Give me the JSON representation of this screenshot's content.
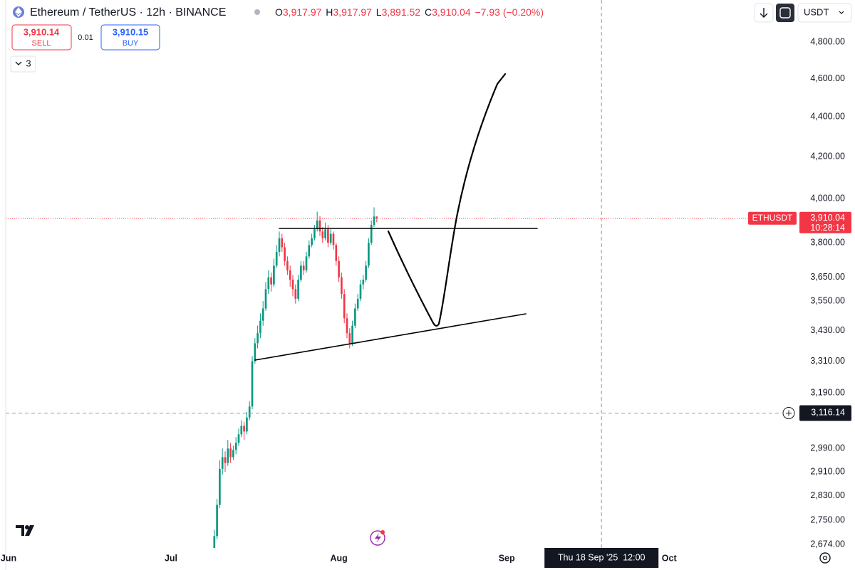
{
  "chart_data": {
    "type": "candlestick",
    "title": "Ethereum / TetherUS · 12h · BINANCE",
    "x": [
      76,
      77,
      78,
      79,
      80,
      81,
      82,
      83,
      84,
      85,
      86,
      87,
      88,
      89,
      90,
      91,
      92,
      93,
      94,
      95,
      96,
      97,
      98,
      99,
      100,
      101,
      102,
      103,
      104,
      105,
      106,
      107,
      108,
      109,
      110,
      111,
      112,
      113,
      114,
      115,
      116,
      117,
      118,
      119,
      120,
      121,
      122,
      123,
      124,
      125,
      126,
      127,
      128,
      129,
      130,
      131,
      132,
      133,
      134,
      135,
      136
    ],
    "open": [
      2640,
      2700,
      2800,
      2920,
      2960,
      2940,
      2990,
      2960,
      2985,
      3010,
      3040,
      3070,
      3050,
      3100,
      3140,
      3310,
      3380,
      3420,
      3470,
      3520,
      3600,
      3650,
      3620,
      3700,
      3760,
      3820,
      3780,
      3720,
      3680,
      3640,
      3600,
      3560,
      3640,
      3700,
      3680,
      3740,
      3790,
      3820,
      3860,
      3900,
      3850,
      3820,
      3860,
      3800,
      3840,
      3790,
      3720,
      3650,
      3580,
      3480,
      3420,
      3380,
      3450,
      3520,
      3560,
      3620,
      3640,
      3700,
      3800,
      3880,
      3917.97
    ],
    "high": [
      2720,
      2820,
      2950,
      2990,
      2980,
      3020,
      3010,
      3000,
      3030,
      3060,
      3090,
      3085,
      3120,
      3160,
      3330,
      3400,
      3450,
      3500,
      3550,
      3630,
      3680,
      3670,
      3730,
      3790,
      3850,
      3840,
      3800,
      3740,
      3700,
      3660,
      3620,
      3660,
      3720,
      3720,
      3760,
      3810,
      3840,
      3880,
      3940,
      3920,
      3870,
      3890,
      3880,
      3860,
      3850,
      3800,
      3740,
      3670,
      3600,
      3500,
      3440,
      3470,
      3540,
      3580,
      3640,
      3660,
      3720,
      3820,
      3900,
      3960,
      3917.97
    ],
    "low": [
      2620,
      2690,
      2790,
      2900,
      2910,
      2930,
      2940,
      2950,
      2970,
      3000,
      3030,
      3020,
      3040,
      3090,
      3130,
      3300,
      3360,
      3400,
      3450,
      3510,
      3580,
      3590,
      3610,
      3690,
      3740,
      3760,
      3700,
      3660,
      3610,
      3570,
      3540,
      3550,
      3630,
      3660,
      3670,
      3730,
      3780,
      3810,
      3850,
      3830,
      3800,
      3810,
      3780,
      3790,
      3770,
      3700,
      3630,
      3560,
      3460,
      3400,
      3360,
      3370,
      3440,
      3510,
      3550,
      3600,
      3630,
      3690,
      3790,
      3870,
      3891.52
    ],
    "close": [
      2700,
      2800,
      2920,
      2960,
      2940,
      2990,
      2960,
      2985,
      3010,
      3040,
      3070,
      3050,
      3100,
      3140,
      3310,
      3380,
      3420,
      3470,
      3520,
      3600,
      3650,
      3620,
      3700,
      3760,
      3820,
      3780,
      3720,
      3680,
      3640,
      3600,
      3560,
      3640,
      3700,
      3680,
      3740,
      3790,
      3820,
      3860,
      3900,
      3850,
      3820,
      3860,
      3800,
      3840,
      3790,
      3720,
      3650,
      3580,
      3480,
      3420,
      3380,
      3450,
      3520,
      3560,
      3620,
      3640,
      3700,
      3800,
      3880,
      3917.97,
      3910.04
    ],
    "up_color": "#089981",
    "down_color": "#f23645",
    "log": true,
    "ylim": [
      2663,
      5042
    ],
    "yticks": [
      {
        "value": 4800,
        "label": "4,800.00"
      },
      {
        "value": 4600,
        "label": "4,600.00"
      },
      {
        "value": 4400,
        "label": "4,400.00"
      },
      {
        "value": 4200,
        "label": "4,200.00"
      },
      {
        "value": 4000,
        "label": "4,000.00"
      },
      {
        "value": 3800,
        "label": "3,800.00"
      },
      {
        "value": 3650,
        "label": "3,650.00"
      },
      {
        "value": 3550,
        "label": "3,550.00"
      },
      {
        "value": 3430,
        "label": "3,430.00"
      },
      {
        "value": 3310,
        "label": "3,310.00"
      },
      {
        "value": 3190,
        "label": "3,190.00"
      },
      {
        "value": 2990,
        "label": "2,990.00"
      },
      {
        "value": 2910,
        "label": "2,910.00"
      },
      {
        "value": 2830,
        "label": "2,830.00"
      },
      {
        "value": 2750,
        "label": "2,750.00"
      },
      {
        "value": 2674,
        "label": "2,674.00"
      }
    ],
    "xlim": [
      -1.05,
      285
    ],
    "xticks": [
      {
        "value": 0,
        "label": "Jun"
      },
      {
        "value": 60,
        "label": "Jul"
      },
      {
        "value": 122,
        "label": "Aug"
      },
      {
        "value": 184,
        "label": "Sep"
      },
      {
        "value": 244,
        "label": "Oct"
      }
    ],
    "last_price": {
      "value": 3910.04,
      "label": "3,910.04"
    },
    "symbol": "ETHUSDT",
    "countdown": "10:28:14",
    "crosshair": {
      "x": 219,
      "price": {
        "value": 3116.14,
        "label": "3,116.14"
      },
      "time_label": "Thu 18 Sep '25  12:00"
    }
  },
  "ui": {
    "ohlc": [
      {
        "key": "O",
        "value": "3,917.97"
      },
      {
        "key": "H",
        "value": "3,917.97"
      },
      {
        "key": "L",
        "value": "3,891.52"
      },
      {
        "key": "C",
        "value": "3,910.04"
      }
    ],
    "change": "−7.93 (−0.20%)",
    "sell": {
      "price": "3,910.14",
      "label": "SELL"
    },
    "spread": "0.01",
    "buy": {
      "price": "3,910.15",
      "label": "BUY"
    },
    "indicators": "3",
    "currency": "USDT"
  }
}
